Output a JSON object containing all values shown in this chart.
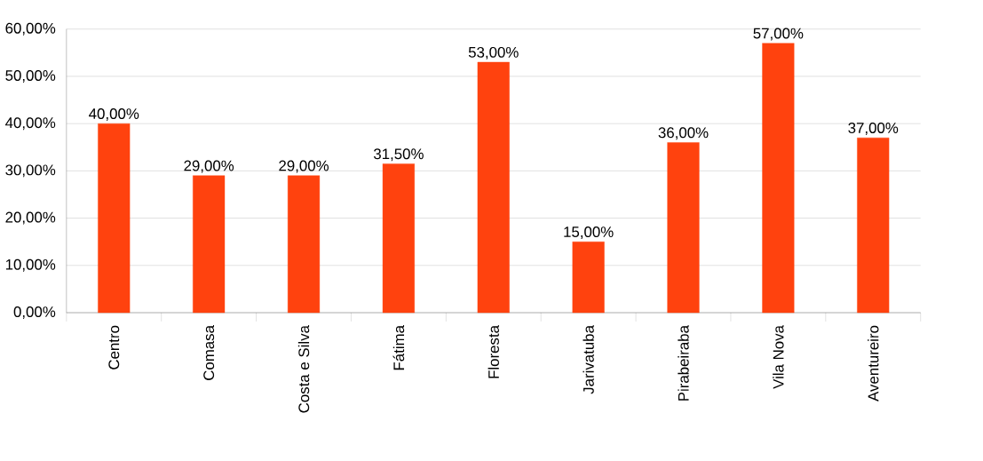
{
  "chart_data": {
    "type": "bar",
    "categories": [
      "Centro",
      "Comasa",
      "Costa e Silva",
      "Fátima",
      "Floresta",
      "Jarivatuba",
      "Pirabeiraba",
      "Vila Nova",
      "Aventureiro"
    ],
    "values": [
      40,
      29,
      29,
      31.5,
      53,
      15,
      36,
      57,
      37
    ],
    "value_labels": [
      "40,00%",
      "29,00%",
      "29,00%",
      "31,50%",
      "53,00%",
      "15,00%",
      "36,00%",
      "57,00%",
      "37,00%"
    ],
    "color": "#ff420e",
    "ylim": [
      0,
      60
    ],
    "yticks": [
      {
        "value": 0,
        "label": "0,00%"
      },
      {
        "value": 10,
        "label": "10,00%"
      },
      {
        "value": 20,
        "label": "20,00%"
      },
      {
        "value": 30,
        "label": "30,00%"
      },
      {
        "value": 40,
        "label": "40,00%"
      },
      {
        "value": 50,
        "label": "50,00%"
      },
      {
        "value": 60,
        "label": "60,00%"
      }
    ],
    "grid": "y"
  }
}
